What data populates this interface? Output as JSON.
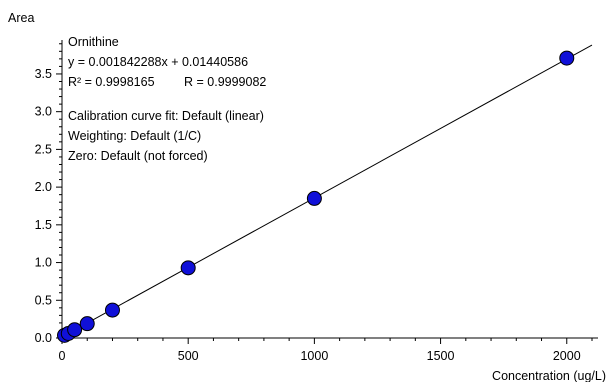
{
  "chart_data": {
    "type": "scatter",
    "ylabel": "Area",
    "xlabel": "Concentration (ug/L)",
    "xlim": [
      0,
      2100
    ],
    "ylim": [
      0,
      3.95
    ],
    "x_ticks": [
      0,
      500,
      1000,
      1500,
      2000
    ],
    "x_tick_labels": [
      "0",
      "500",
      "1000",
      "1500",
      "2000"
    ],
    "y_ticks": [
      0,
      0.5,
      1.0,
      1.5,
      2.0,
      2.5,
      3.0,
      3.5
    ],
    "y_tick_labels": [
      "0.0",
      "0.5",
      "1.0",
      "1.5",
      "2.0",
      "2.5",
      "3.0",
      "3.5"
    ],
    "grid": false,
    "point_color": "#1010d8",
    "point_edge_color": "#000000",
    "line_color": "#000000",
    "fit": {
      "slope": 0.001842288,
      "intercept": 0.01440586
    },
    "points": [
      {
        "x": 10,
        "y": 0.035
      },
      {
        "x": 25,
        "y": 0.06
      },
      {
        "x": 50,
        "y": 0.11
      },
      {
        "x": 100,
        "y": 0.19
      },
      {
        "x": 200,
        "y": 0.37
      },
      {
        "x": 500,
        "y": 0.93
      },
      {
        "x": 1000,
        "y": 1.85
      },
      {
        "x": 2000,
        "y": 3.71
      }
    ],
    "annotations": {
      "compound": "Ornithine",
      "equation": "y = 0.001842288x + 0.01440586",
      "r2_label": "R² = 0.9998165",
      "r_label": "R = 0.9999082",
      "fit_label": "Calibration curve fit: Default (linear)",
      "weighting_label": "Weighting: Default (1/C)",
      "zero_label": "Zero: Default (not forced)"
    }
  }
}
